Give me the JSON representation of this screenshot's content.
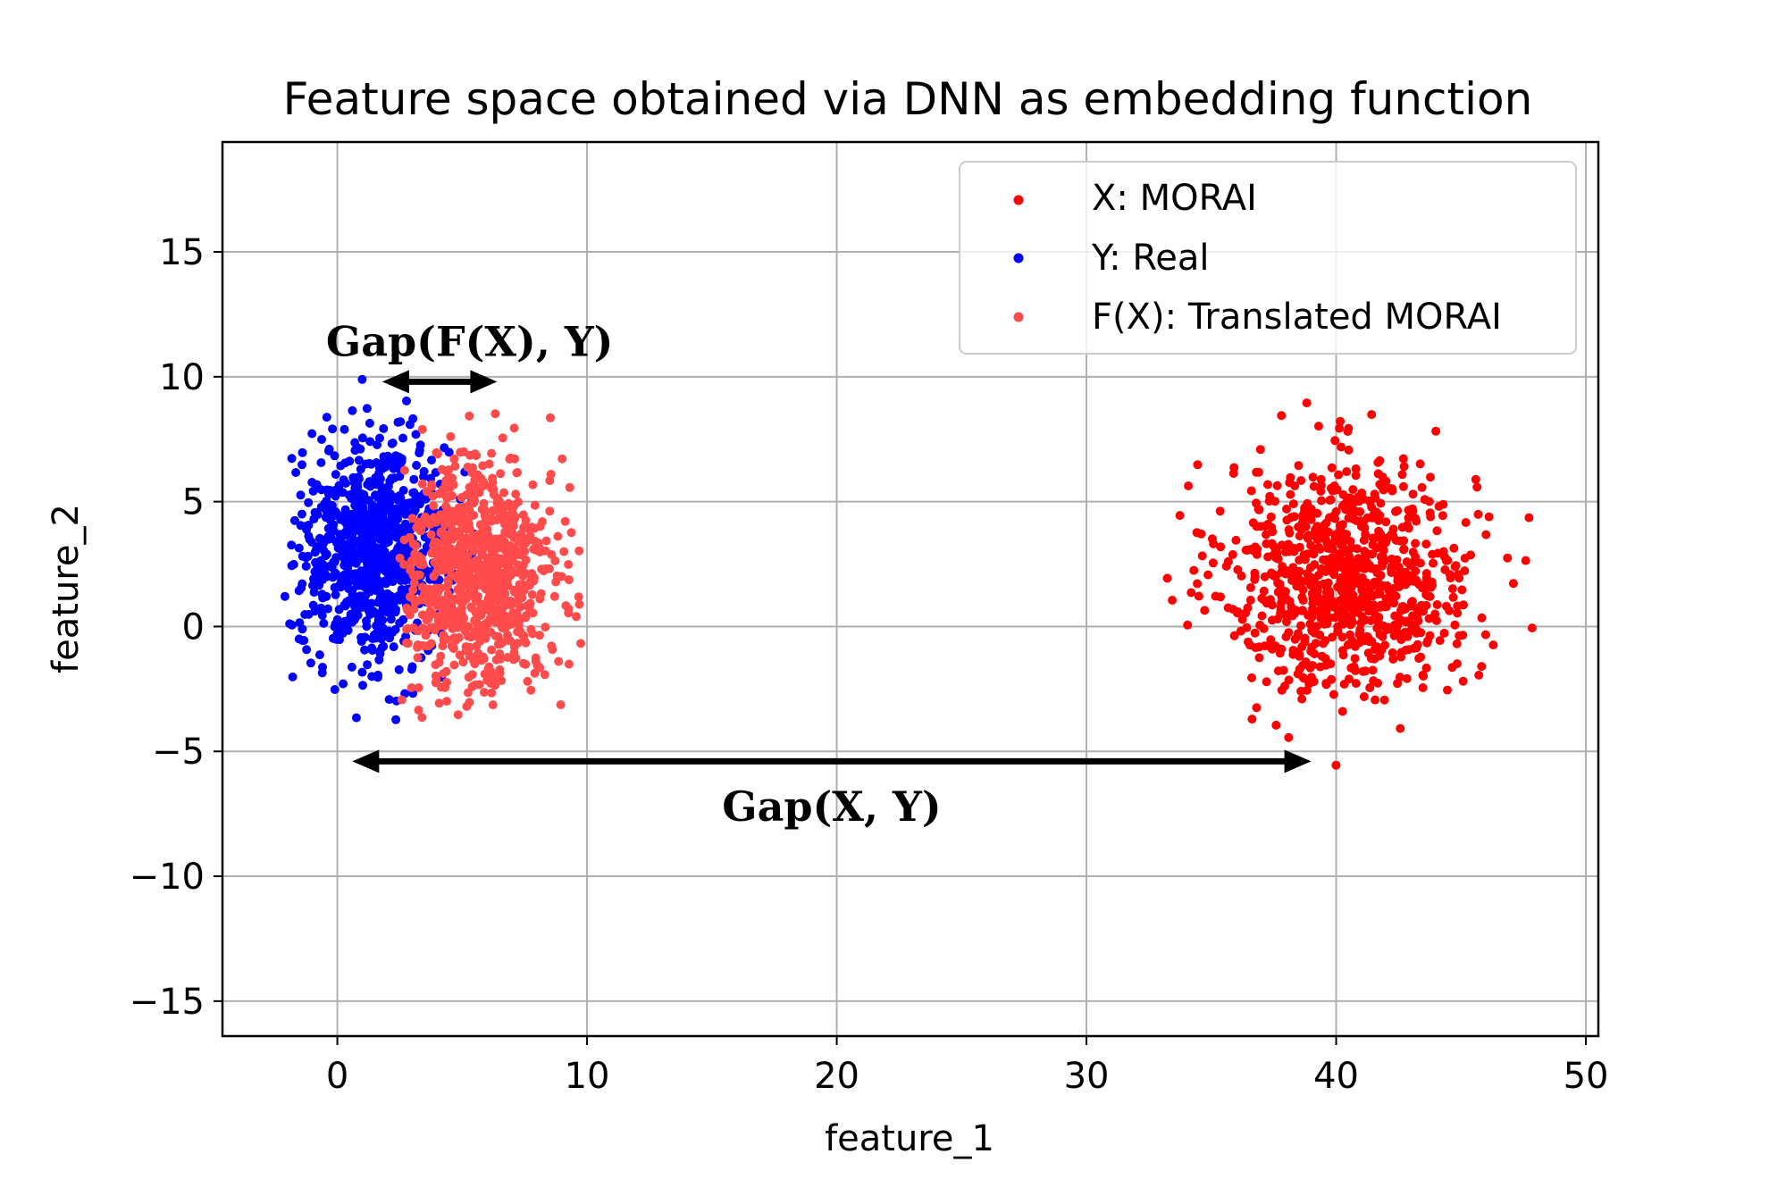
{
  "chart_data": {
    "type": "scatter",
    "title": "Feature space obtained via DNN as embedding function",
    "xlabel": "feature_1",
    "ylabel": "feature_2",
    "xlim": [
      -4.6,
      50.5
    ],
    "ylim": [
      -16.4,
      19.4
    ],
    "x_ticks": [
      0,
      10,
      20,
      30,
      40,
      50
    ],
    "y_ticks": [
      -15,
      -10,
      -5,
      0,
      5,
      10,
      15
    ],
    "x_tick_labels": [
      "0",
      "10",
      "20",
      "30",
      "40",
      "50"
    ],
    "y_tick_labels": [
      "−15",
      "−10",
      "−5",
      "0",
      "5",
      "10",
      "15"
    ],
    "grid": true,
    "legend_position": "top-right",
    "series": [
      {
        "name": "X: MORAI",
        "color": "#ff0000",
        "center": [
          40.5,
          2.0
        ],
        "spread": [
          2.5,
          2.3
        ],
        "count": 900,
        "extent": {
          "x": [
            32,
            48
          ],
          "y": [
            -7,
            9.5
          ]
        }
      },
      {
        "name": "Y: Real",
        "color": "#0000ff",
        "center": [
          1.5,
          3.0
        ],
        "spread": [
          1.5,
          2.2
        ],
        "count": 900,
        "extent": {
          "x": [
            -2.2,
            5.8
          ],
          "y": [
            -5.1,
            10
          ]
        }
      },
      {
        "name": "F(X): Translated MORAI",
        "color": "#ff4b4b",
        "center": [
          5.5,
          2.0
        ],
        "spread": [
          1.6,
          2.3
        ],
        "count": 900,
        "extent": {
          "x": [
            2.5,
            9.8
          ],
          "y": [
            -4.4,
            9.2
          ]
        }
      }
    ],
    "annotations": [
      {
        "text": "Gap(F(X), Y)",
        "arrow_from": [
          1.8,
          9.8
        ],
        "arrow_to": [
          6.4,
          9.8
        ],
        "text_at": [
          5.3,
          11.4
        ]
      },
      {
        "text": "Gap(X, Y)",
        "arrow_from": [
          0.6,
          -5.4
        ],
        "arrow_to": [
          39.0,
          -5.4
        ],
        "text_at": [
          19.8,
          -7.2
        ]
      }
    ]
  }
}
